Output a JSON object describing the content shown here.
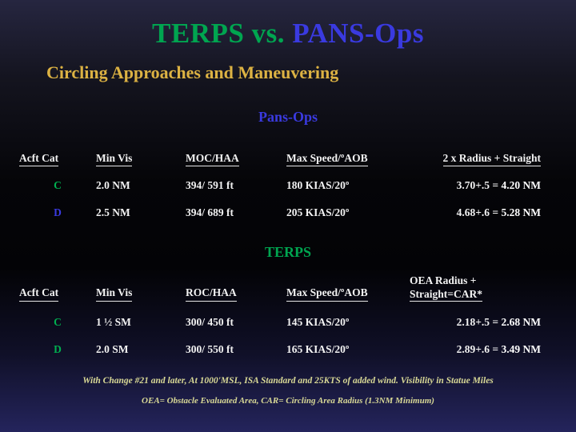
{
  "title": {
    "part_terps": "TERPS",
    "part_vs": " vs. ",
    "part_pansops": "PANS-Ops"
  },
  "subtitle": "Circling Approaches and Maneuvering",
  "colors": {
    "terps_green": "#00a550",
    "pansops_blue": "#3a3ae0",
    "subtitle_gold": "#dcb243",
    "footnote_yellow": "#d9d996",
    "body_text": "#f2f2f2"
  },
  "pansops": {
    "heading": "Pans-Ops",
    "headers": [
      "Acft Cat",
      "Min Vis",
      "MOC/HAA",
      "Max Speed/ºAOB",
      "2 x Radius + Straight"
    ],
    "rows": [
      {
        "cat": "C",
        "min_vis": "2.0 NM",
        "moc_haa": "394/ 591 ft",
        "max_speed": "180 KIAS/20º",
        "radius_calc": "3.70+.5 = ",
        "radius_result": "4.20 NM"
      },
      {
        "cat": "D",
        "min_vis": "2.5 NM",
        "moc_haa": "394/ 689 ft",
        "max_speed": "205 KIAS/20º",
        "radius_calc": "4.68+.6 = ",
        "radius_result": "5.28 NM"
      }
    ]
  },
  "terps": {
    "heading": "TERPS",
    "headers": [
      "Acft Cat",
      "Min Vis",
      "ROC/HAA",
      "Max Speed/ºAOB"
    ],
    "header_right_line1": "OEA Radius +",
    "header_right_line2": "Straight=CAR*",
    "rows": [
      {
        "cat": "C",
        "min_vis": "1 ½ SM",
        "roc_haa": "300/ 450 ft",
        "max_speed": "145 KIAS/20º",
        "radius_calc": "2.18+.5 = ",
        "radius_result": "2.68 NM"
      },
      {
        "cat": "D",
        "min_vis": "2.0 SM",
        "roc_haa": "300/ 550 ft",
        "max_speed": "165 KIAS/20º",
        "radius_calc": "2.89+.6 = ",
        "radius_result": "3.49 NM"
      }
    ]
  },
  "footnotes": {
    "line1": "With Change #21 and later, At 1000'MSL, ISA Standard and 25KTS of added wind. Visibility in Statue Miles",
    "line2": "OEA= Obstacle Evaluated Area, CAR= Circling Area Radius (1.3NM Minimum)"
  }
}
